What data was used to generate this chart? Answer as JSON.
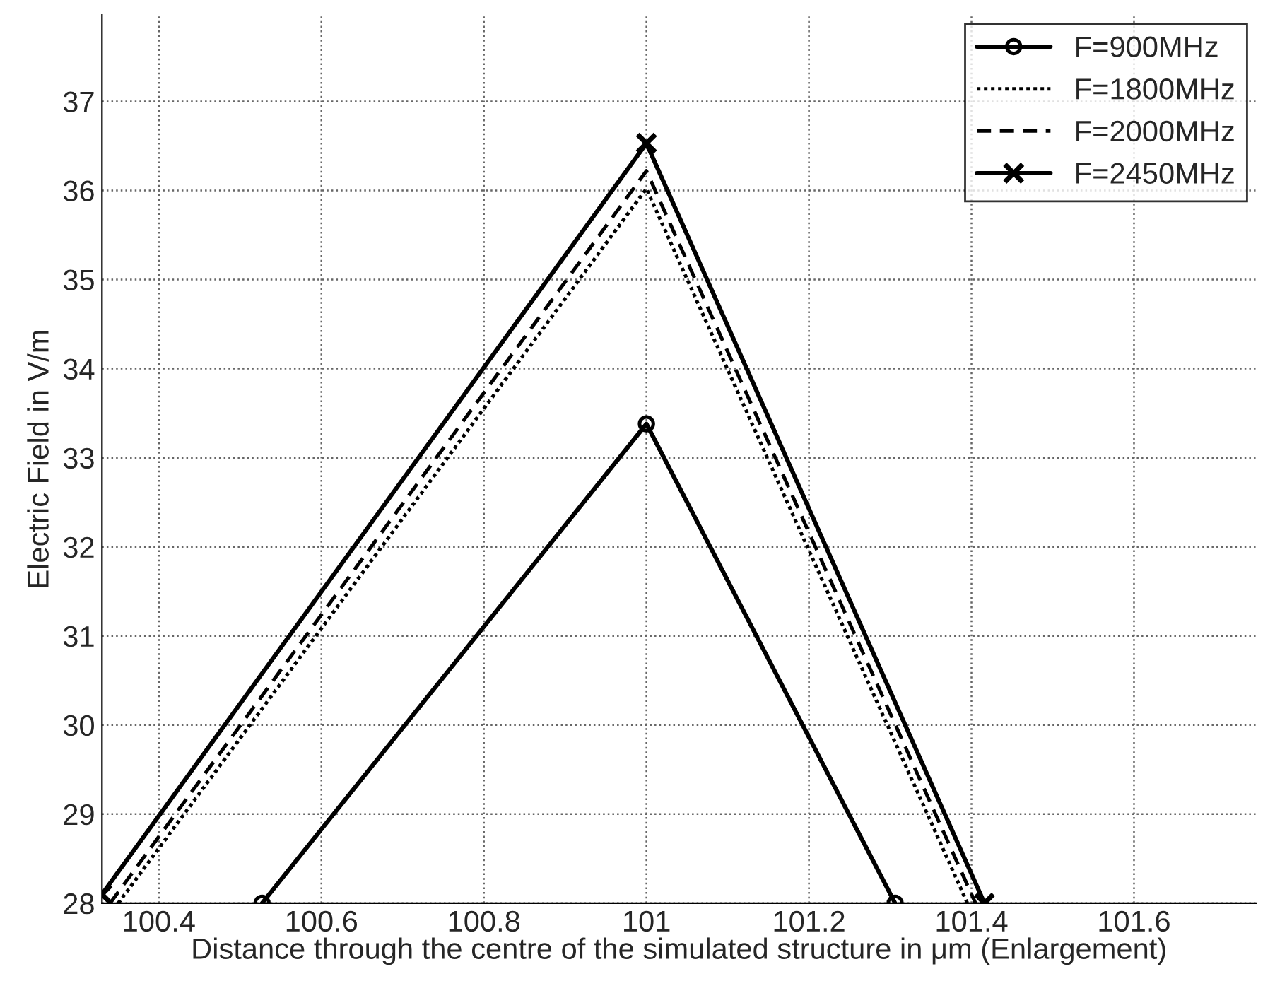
{
  "chart_data": {
    "type": "line",
    "xlabel": "Distance through the centre of the simulated structure in μm (Enlargement)",
    "ylabel": "Electric Field in V/m",
    "xlim": [
      100.33,
      101.75
    ],
    "xticks": [
      100.4,
      100.6,
      100.8,
      {
        "value": 101,
        "label": "101"
      },
      101.2,
      101.4,
      101.6
    ],
    "ylim": [
      28,
      37.97
    ],
    "yticks": [
      28,
      29,
      30,
      31,
      32,
      33,
      34,
      35,
      36,
      37
    ],
    "grid": true,
    "legend": "top right",
    "series": [
      {
        "name": "F=900MHz",
        "color": "#000000",
        "x": [
          100.527,
          101,
          101.306
        ],
        "values": [
          28,
          33.38,
          28
        ],
        "marker": "circle",
        "line_style": "solid"
      },
      {
        "name": "F=1800MHz",
        "color": "#000000",
        "x": [
          100.35,
          101,
          101.395
        ],
        "values": [
          28,
          36.02,
          28
        ],
        "marker": "none",
        "line_style": "dotted"
      },
      {
        "name": "F=2000MHz",
        "color": "#000000",
        "x": [
          100.34,
          101,
          101.405
        ],
        "values": [
          28,
          36.22,
          28
        ],
        "marker": "none",
        "line_style": "dashed"
      },
      {
        "name": "F=2450MHz",
        "color": "#000000",
        "x": [
          100.33,
          101,
          101.416
        ],
        "values": [
          28.1,
          36.53,
          28
        ],
        "marker": "cross",
        "line_style": "solid"
      }
    ]
  }
}
